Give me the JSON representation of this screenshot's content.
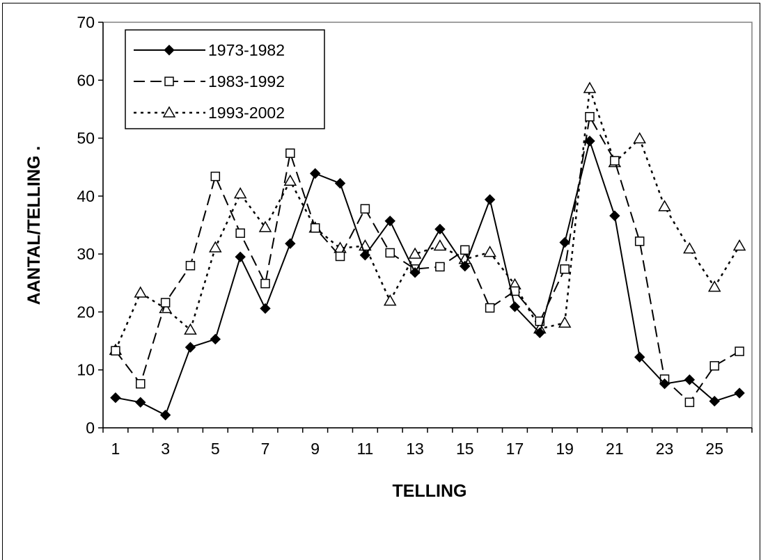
{
  "chart_data": {
    "type": "line",
    "xlabel": "TELLING",
    "ylabel": "AANTAL/TELLING  .",
    "ylim": [
      0,
      70
    ],
    "yticks": [
      0,
      10,
      20,
      30,
      40,
      50,
      60,
      70
    ],
    "x": [
      1,
      2,
      3,
      4,
      5,
      6,
      7,
      8,
      9,
      10,
      11,
      12,
      13,
      14,
      15,
      16,
      17,
      18,
      19,
      20,
      21,
      22,
      23,
      24,
      25,
      26
    ],
    "xtick_labels": [
      "1",
      "3",
      "5",
      "7",
      "9",
      "11",
      "13",
      "15",
      "17",
      "19",
      "21",
      "23",
      "25"
    ],
    "legend_position": "top-left",
    "grid": false,
    "series": [
      {
        "name": "1973-1982",
        "style": "solid",
        "marker": "filled-diamond",
        "values": [
          5.2,
          4.4,
          2.2,
          13.9,
          15.3,
          29.5,
          20.6,
          31.8,
          43.9,
          42.2,
          29.8,
          35.7,
          26.8,
          34.3,
          27.9,
          39.4,
          20.9,
          16.4,
          32.0,
          49.5,
          36.6,
          12.2,
          7.6,
          8.3,
          4.6,
          6.0
        ]
      },
      {
        "name": "1983-1992",
        "style": "dashed",
        "marker": "open-square",
        "values": [
          13.3,
          7.6,
          21.6,
          28.0,
          43.4,
          33.6,
          24.9,
          47.4,
          34.5,
          29.6,
          37.8,
          30.2,
          27.4,
          27.8,
          30.7,
          20.7,
          23.6,
          18.4,
          27.4,
          53.7,
          46.1,
          32.2,
          8.4,
          4.4,
          10.7,
          13.2
        ]
      },
      {
        "name": "1993-2002",
        "style": "dotted",
        "marker": "open-triangle",
        "values": [
          13.4,
          23.3,
          20.6,
          16.9,
          31.1,
          40.4,
          34.6,
          42.6,
          34.5,
          31.0,
          31.4,
          21.9,
          30.0,
          31.4,
          29.1,
          30.3,
          24.7,
          17.1,
          18.1,
          58.6,
          45.8,
          49.9,
          38.2,
          30.9,
          24.3,
          31.4
        ]
      }
    ]
  }
}
